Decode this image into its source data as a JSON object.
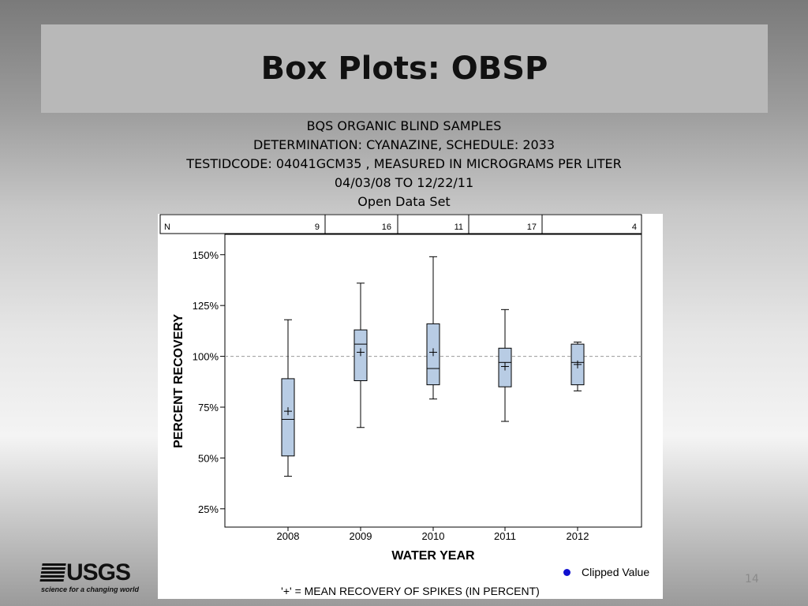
{
  "slide": {
    "title": "Box Plots: OBSP",
    "subtitle_lines": [
      "BQS ORGANIC BLIND SAMPLES",
      "DETERMINATION: CYANAZINE, SCHEDULE: 2033",
      "TESTIDCODE: 04041GCM35 , MEASURED IN MICROGRAMS PER LITER",
      "04/03/08 TO 12/22/11",
      "Open Data Set"
    ],
    "page_number": "14",
    "logo": {
      "text": "USGS",
      "tagline": "science for a changing world"
    }
  },
  "chart_data": {
    "type": "box",
    "n_label": "N",
    "categories": [
      "2008",
      "2009",
      "2010",
      "2011",
      "2012"
    ],
    "n_values": [
      9,
      16,
      11,
      17,
      4
    ],
    "boxes": [
      {
        "category": "2008",
        "whisker_low": 41,
        "q1": 51,
        "median": 69,
        "q3": 89,
        "whisker_high": 118,
        "mean": 73
      },
      {
        "category": "2009",
        "whisker_low": 65,
        "q1": 88,
        "median": 106,
        "q3": 113,
        "whisker_high": 136,
        "mean": 102
      },
      {
        "category": "2010",
        "whisker_low": 79,
        "q1": 86,
        "median": 94,
        "q3": 116,
        "whisker_high": 149,
        "mean": 102
      },
      {
        "category": "2011",
        "whisker_low": 68,
        "q1": 85,
        "median": 97,
        "q3": 104,
        "whisker_high": 123,
        "mean": 95
      },
      {
        "category": "2012",
        "whisker_low": 83,
        "q1": 86,
        "median": 97,
        "q3": 106,
        "whisker_high": 107,
        "mean": 96
      }
    ],
    "yticks": [
      "25%",
      "50%",
      "75%",
      "100%",
      "125%",
      "150%"
    ],
    "ytick_values": [
      25,
      50,
      75,
      100,
      125,
      150
    ],
    "ylim": [
      16,
      160
    ],
    "reference_line": 100,
    "xlabel": "WATER YEAR",
    "ylabel": "PERCENT RECOVERY",
    "legend": {
      "clipped_value": "Clipped Value"
    },
    "footnote": "'+' = MEAN RECOVERY OF SPIKES (IN PERCENT)",
    "colors": {
      "box_fill": "#b8cce4",
      "box_stroke": "#000000",
      "clipped_marker": "#1010d0",
      "reference_line": "#999999"
    }
  }
}
